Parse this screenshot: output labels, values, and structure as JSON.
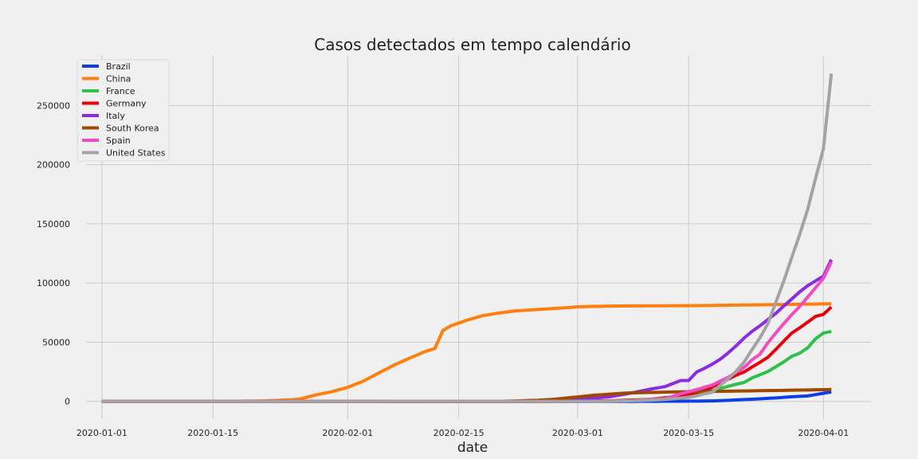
{
  "chart_data": {
    "type": "line",
    "title": "Casos detectados em tempo calendário",
    "xlabel": "date",
    "ylabel": "",
    "x_start": "2020-01-01",
    "x_end": "2020-04-02",
    "xlim": [
      "2019-12-30",
      "2020-04-07"
    ],
    "ylim": [
      -15000,
      292000
    ],
    "xticks": [
      "2020-01-01",
      "2020-01-15",
      "2020-02-01",
      "2020-02-15",
      "2020-03-01",
      "2020-03-15",
      "2020-04-01"
    ],
    "yticks": [
      0,
      50000,
      100000,
      150000,
      200000,
      250000
    ],
    "grid": true,
    "legend_position": "top-left",
    "series": [
      {
        "name": "Brazil",
        "color": "#0b3ee8",
        "points": [
          [
            "2020-01-01",
            0
          ],
          [
            "2020-02-25",
            0
          ],
          [
            "2020-03-05",
            8
          ],
          [
            "2020-03-10",
            31
          ],
          [
            "2020-03-13",
            151
          ],
          [
            "2020-03-16",
            234
          ],
          [
            "2020-03-18",
            428
          ],
          [
            "2020-03-20",
            904
          ],
          [
            "2020-03-22",
            1546
          ],
          [
            "2020-03-24",
            2201
          ],
          [
            "2020-03-26",
            2915
          ],
          [
            "2020-03-28",
            3904
          ],
          [
            "2020-03-30",
            4579
          ],
          [
            "2020-04-02",
            8044
          ]
        ]
      },
      {
        "name": "China",
        "color": "#ff7f0e",
        "points": [
          [
            "2020-01-01",
            0
          ],
          [
            "2020-01-15",
            0
          ],
          [
            "2020-01-20",
            278
          ],
          [
            "2020-01-22",
            548
          ],
          [
            "2020-01-25",
            1406
          ],
          [
            "2020-01-26",
            2075
          ],
          [
            "2020-01-28",
            5509
          ],
          [
            "2020-01-30",
            8200
          ],
          [
            "2020-02-01",
            11891
          ],
          [
            "2020-02-03",
            17238
          ],
          [
            "2020-02-05",
            24324
          ],
          [
            "2020-02-07",
            31161
          ],
          [
            "2020-02-09",
            37121
          ],
          [
            "2020-02-11",
            42708
          ],
          [
            "2020-02-12",
            44730
          ],
          [
            "2020-02-13",
            59882
          ],
          [
            "2020-02-14",
            63851
          ],
          [
            "2020-02-16",
            68500
          ],
          [
            "2020-02-18",
            72436
          ],
          [
            "2020-02-20",
            74576
          ],
          [
            "2020-02-22",
            76397
          ],
          [
            "2020-02-24",
            77241
          ],
          [
            "2020-02-26",
            78064
          ],
          [
            "2020-02-29",
            79356
          ],
          [
            "2020-03-01",
            79932
          ],
          [
            "2020-03-05",
            80537
          ],
          [
            "2020-03-10",
            80757
          ],
          [
            "2020-03-15",
            80860
          ],
          [
            "2020-03-20",
            81250
          ],
          [
            "2020-03-25",
            81661
          ],
          [
            "2020-03-30",
            82198
          ],
          [
            "2020-04-02",
            82432
          ]
        ]
      },
      {
        "name": "France",
        "color": "#2ec04a",
        "points": [
          [
            "2020-01-01",
            0
          ],
          [
            "2020-02-25",
            14
          ],
          [
            "2020-03-01",
            130
          ],
          [
            "2020-03-05",
            423
          ],
          [
            "2020-03-10",
            1784
          ],
          [
            "2020-03-13",
            3661
          ],
          [
            "2020-03-15",
            5423
          ],
          [
            "2020-03-17",
            7699
          ],
          [
            "2020-03-19",
            10947
          ],
          [
            "2020-03-21",
            14459
          ],
          [
            "2020-03-22",
            16018
          ],
          [
            "2020-03-23",
            19856
          ],
          [
            "2020-03-25",
            25233
          ],
          [
            "2020-03-27",
            33402
          ],
          [
            "2020-03-28",
            38105
          ],
          [
            "2020-03-29",
            40708
          ],
          [
            "2020-03-30",
            45170
          ],
          [
            "2020-03-31",
            52827
          ],
          [
            "2020-04-01",
            57749
          ],
          [
            "2020-04-02",
            59105
          ]
        ]
      },
      {
        "name": "Germany",
        "color": "#e8000b",
        "points": [
          [
            "2020-01-01",
            0
          ],
          [
            "2020-02-25",
            16
          ],
          [
            "2020-03-01",
            130
          ],
          [
            "2020-03-05",
            482
          ],
          [
            "2020-03-10",
            1457
          ],
          [
            "2020-03-13",
            3675
          ],
          [
            "2020-03-15",
            5795
          ],
          [
            "2020-03-17",
            9257
          ],
          [
            "2020-03-19",
            15320
          ],
          [
            "2020-03-21",
            22213
          ],
          [
            "2020-03-22",
            24873
          ],
          [
            "2020-03-23",
            29056
          ],
          [
            "2020-03-24",
            32986
          ],
          [
            "2020-03-25",
            37323
          ],
          [
            "2020-03-26",
            43938
          ],
          [
            "2020-03-27",
            50871
          ],
          [
            "2020-03-28",
            57695
          ],
          [
            "2020-03-29",
            62095
          ],
          [
            "2020-03-30",
            66885
          ],
          [
            "2020-03-31",
            71808
          ],
          [
            "2020-04-01",
            73522
          ],
          [
            "2020-04-02",
            79696
          ]
        ]
      },
      {
        "name": "Italy",
        "color": "#8b2be2",
        "points": [
          [
            "2020-01-01",
            0
          ],
          [
            "2020-02-21",
            20
          ],
          [
            "2020-02-25",
            322
          ],
          [
            "2020-03-01",
            1694
          ],
          [
            "2020-03-05",
            3858
          ],
          [
            "2020-03-08",
            7375
          ],
          [
            "2020-03-10",
            10149
          ],
          [
            "2020-03-12",
            12462
          ],
          [
            "2020-03-14",
            17660
          ],
          [
            "2020-03-15",
            17660
          ],
          [
            "2020-03-16",
            24747
          ],
          [
            "2020-03-17",
            27980
          ],
          [
            "2020-03-18",
            31506
          ],
          [
            "2020-03-19",
            35713
          ],
          [
            "2020-03-20",
            41035
          ],
          [
            "2020-03-21",
            47021
          ],
          [
            "2020-03-22",
            53578
          ],
          [
            "2020-03-23",
            59138
          ],
          [
            "2020-03-24",
            63927
          ],
          [
            "2020-03-25",
            69176
          ],
          [
            "2020-03-26",
            74386
          ],
          [
            "2020-03-27",
            80589
          ],
          [
            "2020-03-28",
            86498
          ],
          [
            "2020-03-29",
            92472
          ],
          [
            "2020-03-30",
            97689
          ],
          [
            "2020-03-31",
            101739
          ],
          [
            "2020-04-01",
            105792
          ],
          [
            "2020-04-02",
            119827
          ]
        ]
      },
      {
        "name": "South Korea",
        "color": "#9f4800",
        "points": [
          [
            "2020-01-01",
            0
          ],
          [
            "2020-01-20",
            1
          ],
          [
            "2020-02-18",
            31
          ],
          [
            "2020-02-20",
            104
          ],
          [
            "2020-02-23",
            602
          ],
          [
            "2020-02-25",
            977
          ],
          [
            "2020-02-27",
            1766
          ],
          [
            "2020-02-29",
            3150
          ],
          [
            "2020-03-01",
            3736
          ],
          [
            "2020-03-03",
            5186
          ],
          [
            "2020-03-05",
            6088
          ],
          [
            "2020-03-07",
            7041
          ],
          [
            "2020-03-10",
            7513
          ],
          [
            "2020-03-13",
            7979
          ],
          [
            "2020-03-16",
            8236
          ],
          [
            "2020-03-20",
            8652
          ],
          [
            "2020-03-25",
            9137
          ],
          [
            "2020-03-30",
            9661
          ],
          [
            "2020-04-02",
            10062
          ]
        ]
      },
      {
        "name": "Spain",
        "color": "#f14cc1",
        "points": [
          [
            "2020-01-01",
            0
          ],
          [
            "2020-02-25",
            6
          ],
          [
            "2020-03-01",
            84
          ],
          [
            "2020-03-05",
            282
          ],
          [
            "2020-03-08",
            673
          ],
          [
            "2020-03-10",
            1695
          ],
          [
            "2020-03-12",
            2277
          ],
          [
            "2020-03-14",
            6391
          ],
          [
            "2020-03-16",
            9942
          ],
          [
            "2020-03-18",
            13910
          ],
          [
            "2020-03-20",
            20410
          ],
          [
            "2020-03-22",
            28768
          ],
          [
            "2020-03-23",
            35136
          ],
          [
            "2020-03-24",
            39885
          ],
          [
            "2020-03-25",
            49515
          ],
          [
            "2020-03-26",
            57786
          ],
          [
            "2020-03-27",
            65719
          ],
          [
            "2020-03-28",
            73235
          ],
          [
            "2020-03-29",
            80110
          ],
          [
            "2020-03-30",
            87956
          ],
          [
            "2020-03-31",
            95923
          ],
          [
            "2020-04-01",
            104118
          ],
          [
            "2020-04-02",
            117710
          ]
        ]
      },
      {
        "name": "United States",
        "color": "#a3a3a3",
        "points": [
          [
            "2020-01-01",
            0
          ],
          [
            "2020-01-22",
            1
          ],
          [
            "2020-02-25",
            53
          ],
          [
            "2020-03-01",
            75
          ],
          [
            "2020-03-05",
            221
          ],
          [
            "2020-03-08",
            541
          ],
          [
            "2020-03-10",
            994
          ],
          [
            "2020-03-12",
            1663
          ],
          [
            "2020-03-14",
            2727
          ],
          [
            "2020-03-15",
            3499
          ],
          [
            "2020-03-16",
            4632
          ],
          [
            "2020-03-17",
            6421
          ],
          [
            "2020-03-18",
            7786
          ],
          [
            "2020-03-19",
            13680
          ],
          [
            "2020-03-20",
            19101
          ],
          [
            "2020-03-21",
            25493
          ],
          [
            "2020-03-22",
            33276
          ],
          [
            "2020-03-23",
            43847
          ],
          [
            "2020-03-24",
            53740
          ],
          [
            "2020-03-25",
            65778
          ],
          [
            "2020-03-26",
            83836
          ],
          [
            "2020-03-27",
            101657
          ],
          [
            "2020-03-28",
            121478
          ],
          [
            "2020-03-29",
            140886
          ],
          [
            "2020-03-30",
            161807
          ],
          [
            "2020-03-31",
            188172
          ],
          [
            "2020-04-01",
            213372
          ],
          [
            "2020-04-02",
            276965
          ]
        ]
      }
    ]
  }
}
